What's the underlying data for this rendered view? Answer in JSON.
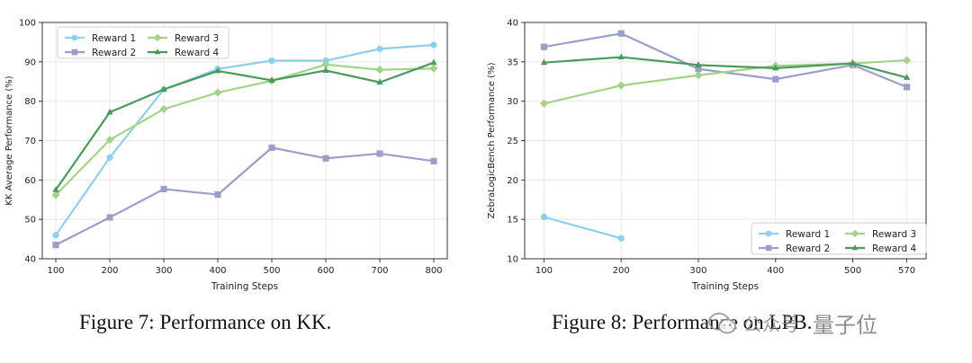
{
  "watermark": {
    "account": "公众号",
    "brand": "量子位"
  },
  "charts": [
    {
      "caption": "Figure 7: Performance on KK.",
      "chart_data": {
        "type": "line",
        "xlabel": "Training Steps",
        "ylabel": "KK Average Performance (%)",
        "x": [
          100,
          200,
          300,
          400,
          500,
          600,
          700,
          800
        ],
        "xticks": [
          100,
          200,
          300,
          400,
          500,
          600,
          700,
          800
        ],
        "xlim": [
          75,
          825
        ],
        "ylim": [
          40,
          100
        ],
        "yticks": [
          40,
          50,
          60,
          70,
          80,
          90,
          100
        ],
        "grid": true,
        "legend_position": "top-left",
        "series": [
          {
            "name": "Reward 1",
            "color": "#8ecfed",
            "marker": "circle",
            "points": [
              [
                100,
                46
              ],
              [
                200,
                65.7
              ],
              [
                300,
                83
              ],
              [
                400,
                88.2
              ],
              [
                500,
                90.3
              ],
              [
                600,
                90.3
              ],
              [
                700,
                93.3
              ],
              [
                800,
                94.3
              ]
            ]
          },
          {
            "name": "Reward 2",
            "color": "#9b9fc8",
            "marker": "square",
            "points": [
              [
                100,
                43.5
              ],
              [
                200,
                50.5
              ],
              [
                300,
                57.7
              ],
              [
                400,
                56.3
              ],
              [
                500,
                68.2
              ],
              [
                600,
                65.5
              ],
              [
                700,
                66.7
              ],
              [
                800,
                64.8
              ]
            ]
          },
          {
            "name": "Reward 3",
            "color": "#a4d28a",
            "marker": "diamond",
            "points": [
              [
                100,
                56.2
              ],
              [
                200,
                70.2
              ],
              [
                300,
                78
              ],
              [
                400,
                82.2
              ],
              [
                500,
                85.2
              ],
              [
                600,
                89.3
              ],
              [
                700,
                88
              ],
              [
                800,
                88.3
              ]
            ]
          },
          {
            "name": "Reward 4",
            "color": "#4a9a5c",
            "marker": "triangle",
            "points": [
              [
                100,
                57.5
              ],
              [
                200,
                77.2
              ],
              [
                300,
                83
              ],
              [
                400,
                87.7
              ],
              [
                500,
                85.3
              ],
              [
                600,
                87.8
              ],
              [
                700,
                84.8
              ],
              [
                800,
                89.8
              ]
            ]
          }
        ]
      }
    },
    {
      "caption": "Figure 8: Performance on LPB.",
      "chart_data": {
        "type": "line",
        "xlabel": "Training Steps",
        "ylabel": "ZebraLogicBench Performance (%)",
        "x": [
          100,
          200,
          300,
          400,
          500,
          570
        ],
        "xticks": [
          100,
          200,
          300,
          400,
          500,
          570
        ],
        "xlim": [
          75,
          595
        ],
        "ylim": [
          10,
          40
        ],
        "yticks": [
          10,
          15,
          20,
          25,
          30,
          35,
          40
        ],
        "grid": true,
        "legend_position": "bottom-right",
        "series": [
          {
            "name": "Reward 1",
            "color": "#8ecfed",
            "marker": "circle",
            "points": [
              [
                100,
                15.3
              ],
              [
                200,
                12.6
              ]
            ]
          },
          {
            "name": "Reward 2",
            "color": "#9b9fc8",
            "marker": "square",
            "points": [
              [
                100,
                36.9
              ],
              [
                200,
                38.6
              ],
              [
                300,
                34.1
              ],
              [
                400,
                32.8
              ],
              [
                500,
                34.6
              ],
              [
                570,
                31.8
              ]
            ]
          },
          {
            "name": "Reward 3",
            "color": "#a4d28a",
            "marker": "diamond",
            "points": [
              [
                100,
                29.7
              ],
              [
                200,
                32
              ],
              [
                300,
                33.3
              ],
              [
                400,
                34.5
              ],
              [
                500,
                34.8
              ],
              [
                570,
                35.2
              ]
            ]
          },
          {
            "name": "Reward 4",
            "color": "#4a9a5c",
            "marker": "triangle",
            "points": [
              [
                100,
                34.9
              ],
              [
                200,
                35.6
              ],
              [
                300,
                34.6
              ],
              [
                400,
                34.2
              ],
              [
                500,
                34.8
              ],
              [
                570,
                33
              ]
            ]
          }
        ]
      }
    }
  ]
}
